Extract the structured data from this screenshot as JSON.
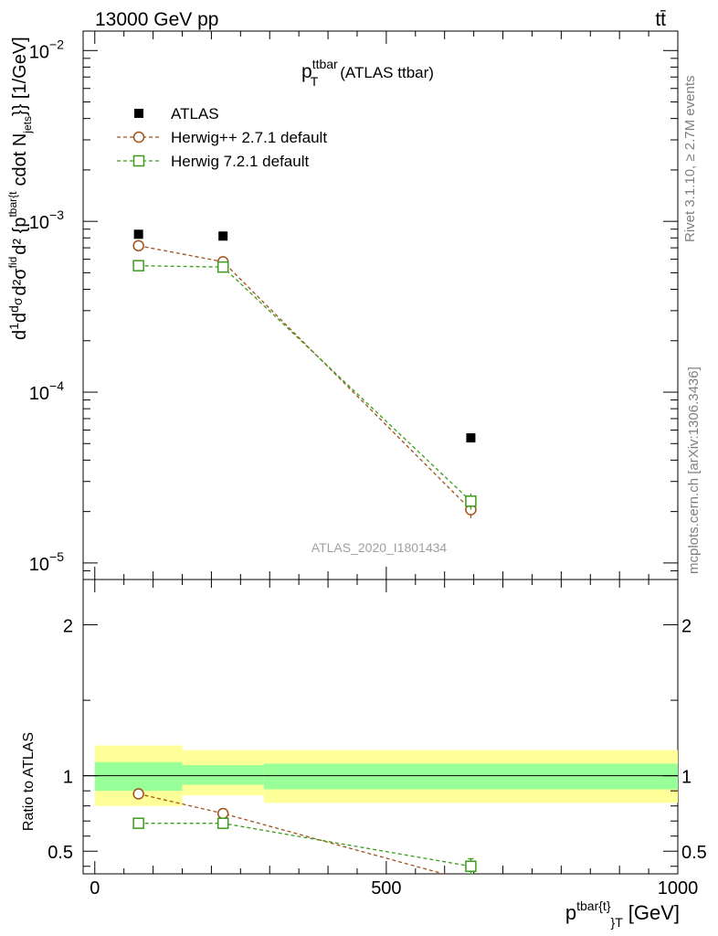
{
  "header": {
    "energy_label": "13000 GeV pp",
    "process_label": "tt̄"
  },
  "side_labels": {
    "rivet": "Rivet 3.1.10, ≥ 2.7M events",
    "mcplots": "mcplots.cern.ch [arXiv:1306.3436]"
  },
  "watermark": "ATLAS_2020_I1801434",
  "chart_data": [
    {
      "type": "scatter",
      "title_main": "p",
      "title_sup": "ttbar",
      "title_sub": "T",
      "title_rest": "(ATLAS ttbar)",
      "ylabel_html": "d1dσ d²σfid/d²{p tbar{t}} cdot Njets}} [1/GeV]",
      "y_scale": "log",
      "xlim": [
        -20,
        1000
      ],
      "ylim": [
        8e-06,
        0.013
      ],
      "y_ticks": [
        {
          "value": 1e-05,
          "base": "10",
          "exp": "−5"
        },
        {
          "value": 0.0001,
          "base": "10",
          "exp": "−4"
        },
        {
          "value": 0.001,
          "base": "10",
          "exp": "−3"
        },
        {
          "value": 0.01,
          "base": "10",
          "exp": "−2"
        }
      ],
      "legend": [
        {
          "label": "ATLAS",
          "marker": "filled-square",
          "color": "#000000"
        },
        {
          "label": "Herwig++ 2.7.1 default",
          "marker": "open-circle",
          "color": "#a0521a"
        },
        {
          "label": "Herwig 7.2.1 default",
          "marker": "open-square",
          "color": "#3b9b1a"
        }
      ],
      "series": [
        {
          "name": "ATLAS",
          "x": [
            75,
            220,
            645
          ],
          "y": [
            0.00084,
            0.00082,
            5.4e-05
          ],
          "yerr": [
            0,
            0,
            0
          ]
        },
        {
          "name": "Herwig++ 2.7.1 default",
          "x": [
            75,
            220,
            645
          ],
          "y": [
            0.00072,
            0.00058,
            2.05e-05
          ],
          "yerr_lo": [
            2e-05,
            2e-05,
            2.2e-06
          ],
          "yerr_hi": [
            2e-05,
            2e-05,
            2.2e-06
          ]
        },
        {
          "name": "Herwig 7.2.1 default",
          "x": [
            75,
            220,
            645
          ],
          "y": [
            0.00055,
            0.00054,
            2.3e-05
          ],
          "yerr_lo": [
            1.5e-05,
            1.5e-05,
            2.5e-06
          ],
          "yerr_hi": [
            1.5e-05,
            1.5e-05,
            2.5e-06
          ]
        }
      ]
    },
    {
      "type": "scatter",
      "ylabel": "Ratio to ATLAS",
      "xlabel_main": "p",
      "xlabel_sup": "tbar{t}",
      "xlabel_sub": "}",
      "xlabel_sub2": "T",
      "xlabel_unit": "[GeV]",
      "xlim": [
        -20,
        1000
      ],
      "ylim": [
        0.35,
        2.3
      ],
      "x_ticks": [
        "0",
        "500",
        "1000"
      ],
      "x_tick_values": [
        0,
        500,
        1000
      ],
      "y_ticks": [
        "0.5",
        "1",
        "2"
      ],
      "y_tick_values": [
        0.5,
        1,
        2
      ],
      "bins": [
        {
          "x0": 0,
          "x1": 150,
          "yellow": [
            0.8,
            1.2
          ],
          "green": [
            0.9,
            1.09
          ]
        },
        {
          "x0": 150,
          "x1": 290,
          "yellow": [
            0.87,
            1.17
          ],
          "green": [
            0.94,
            1.07
          ]
        },
        {
          "x0": 290,
          "x1": 1000,
          "yellow": [
            0.82,
            1.17
          ],
          "green": [
            0.91,
            1.08
          ]
        }
      ],
      "series": [
        {
          "name": "Herwig++ 2.7.1 default",
          "x": [
            75,
            220,
            645
          ],
          "y": [
            0.88,
            0.75,
            0.3
          ],
          "yerr": [
            0.03,
            0.03,
            0.04
          ]
        },
        {
          "name": "Herwig 7.2.1 default",
          "x": [
            75,
            220,
            645
          ],
          "y": [
            0.685,
            0.685,
            0.4
          ],
          "yerr": [
            0.025,
            0.025,
            0.05
          ]
        }
      ]
    }
  ]
}
